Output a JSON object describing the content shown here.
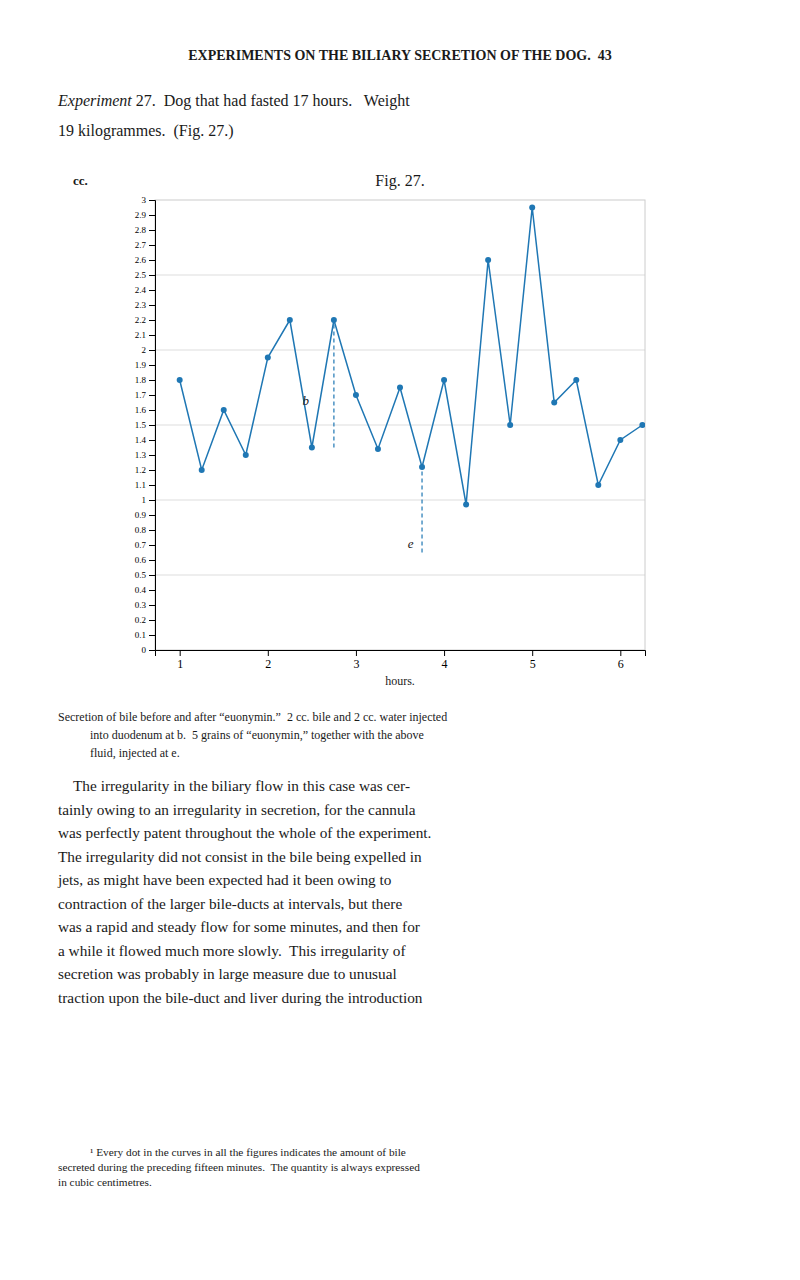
{
  "header": "EXPERIMENTS ON THE BILIARY SECRETION OF THE DOG.  43",
  "experiment": {
    "italic": "Experiment",
    "rest": " 27.  Dog that had fasted 17 hours.   Weight",
    "line2": "19 kilogrammes.  (Fig. 27.)"
  },
  "caption": [
    "Secretion of bile before and after “euonymin.”  2 cc. bile and 2 cc. water injected",
    "into duodenum at b.  5 grains of “euonymin,” together with the above",
    "fluid, injected at e."
  ],
  "body": [
    "    The irregularity in the biliary flow in this case was cer-",
    "tainly owing to an irregularity in secretion, for the cannula",
    "was perfectly patent throughout the whole of the experiment.",
    "The irregularity did not consist in the bile being expelled in",
    "jets, as might have been expected had it been owing to",
    "contraction of the larger bile-ducts at intervals, but there",
    "was a rapid and steady flow for some minutes, and then for",
    "a while it flowed much more slowly.  This irregularity of",
    "secretion was probably in large measure due to unusual",
    "traction upon the bile-duct and liver during the introduction"
  ],
  "footnote": [
    "¹ Every dot in the curves in all the figures indicates the amount of bile",
    "secreted during the preceding fifteen minutes.  The quantity is always expressed",
    "in cubic centimetres."
  ],
  "chart_data": {
    "type": "line",
    "title": "Fig. 27.",
    "ylabel": "cc.",
    "xlabel": "hours.",
    "marker": "circle",
    "x": [
      1.0,
      1.25,
      1.5,
      1.75,
      2.0,
      2.25,
      2.5,
      2.75,
      3.0,
      3.25,
      3.5,
      3.75,
      4.0,
      4.25,
      4.5,
      4.75,
      5.0,
      5.25,
      5.5,
      5.75,
      6.0,
      6.25
    ],
    "values": [
      1.8,
      1.2,
      1.6,
      1.3,
      1.95,
      2.2,
      1.35,
      2.2,
      1.7,
      1.34,
      1.75,
      1.22,
      1.8,
      0.97,
      2.6,
      1.5,
      2.95,
      1.65,
      1.8,
      1.1,
      1.4,
      1.5
    ],
    "xlim": [
      0.72,
      6.28
    ],
    "xticks": [
      1,
      2,
      3,
      4,
      5,
      6
    ],
    "ylim": [
      0,
      3.0
    ],
    "yticks": [
      0,
      0.1,
      0.2,
      0.3,
      0.4,
      0.5,
      0.6,
      0.7,
      0.8,
      0.9,
      1,
      1.1,
      1.2,
      1.3,
      1.4,
      1.5,
      1.6,
      1.7,
      1.8,
      1.9,
      2,
      2.1,
      2.2,
      2.3,
      2.4,
      2.5,
      2.6,
      2.7,
      2.8,
      2.9,
      3
    ],
    "grid": true,
    "grid_values": [
      0.5,
      1.0,
      1.5,
      2.0,
      2.5
    ],
    "vlines": [
      {
        "x": 2.75,
        "y": [
          1.35,
          2.2
        ]
      },
      {
        "x": 3.75,
        "y": [
          0.65,
          1.22
        ]
      }
    ],
    "annotations": [
      {
        "text": "b",
        "x": 2.43,
        "y": 1.65
      },
      {
        "text": "e",
        "x": 3.62,
        "y": 0.7
      }
    ]
  }
}
